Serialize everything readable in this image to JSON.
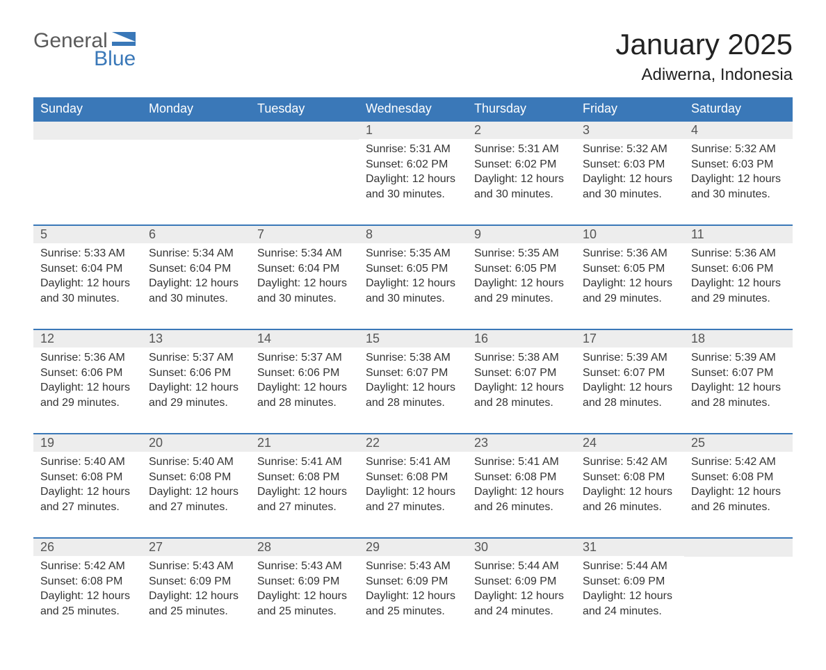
{
  "logo": {
    "general": "General",
    "blue": "Blue",
    "accent_color": "#3a78b8"
  },
  "title": "January 2025",
  "location": "Adiwerna, Indonesia",
  "colors": {
    "header_bg": "#3a78b8",
    "header_text": "#ffffff",
    "daynum_bg": "#ededed",
    "text": "#333333",
    "row_border": "#3a78b8",
    "page_bg": "#ffffff"
  },
  "weekdays": [
    "Sunday",
    "Monday",
    "Tuesday",
    "Wednesday",
    "Thursday",
    "Friday",
    "Saturday"
  ],
  "weeks": [
    [
      {
        "empty": true
      },
      {
        "empty": true
      },
      {
        "empty": true
      },
      {
        "day": "1",
        "sunrise": "Sunrise: 5:31 AM",
        "sunset": "Sunset: 6:02 PM",
        "daylight": "Daylight: 12 hours and 30 minutes."
      },
      {
        "day": "2",
        "sunrise": "Sunrise: 5:31 AM",
        "sunset": "Sunset: 6:02 PM",
        "daylight": "Daylight: 12 hours and 30 minutes."
      },
      {
        "day": "3",
        "sunrise": "Sunrise: 5:32 AM",
        "sunset": "Sunset: 6:03 PM",
        "daylight": "Daylight: 12 hours and 30 minutes."
      },
      {
        "day": "4",
        "sunrise": "Sunrise: 5:32 AM",
        "sunset": "Sunset: 6:03 PM",
        "daylight": "Daylight: 12 hours and 30 minutes."
      }
    ],
    [
      {
        "day": "5",
        "sunrise": "Sunrise: 5:33 AM",
        "sunset": "Sunset: 6:04 PM",
        "daylight": "Daylight: 12 hours and 30 minutes."
      },
      {
        "day": "6",
        "sunrise": "Sunrise: 5:34 AM",
        "sunset": "Sunset: 6:04 PM",
        "daylight": "Daylight: 12 hours and 30 minutes."
      },
      {
        "day": "7",
        "sunrise": "Sunrise: 5:34 AM",
        "sunset": "Sunset: 6:04 PM",
        "daylight": "Daylight: 12 hours and 30 minutes."
      },
      {
        "day": "8",
        "sunrise": "Sunrise: 5:35 AM",
        "sunset": "Sunset: 6:05 PM",
        "daylight": "Daylight: 12 hours and 30 minutes."
      },
      {
        "day": "9",
        "sunrise": "Sunrise: 5:35 AM",
        "sunset": "Sunset: 6:05 PM",
        "daylight": "Daylight: 12 hours and 29 minutes."
      },
      {
        "day": "10",
        "sunrise": "Sunrise: 5:36 AM",
        "sunset": "Sunset: 6:05 PM",
        "daylight": "Daylight: 12 hours and 29 minutes."
      },
      {
        "day": "11",
        "sunrise": "Sunrise: 5:36 AM",
        "sunset": "Sunset: 6:06 PM",
        "daylight": "Daylight: 12 hours and 29 minutes."
      }
    ],
    [
      {
        "day": "12",
        "sunrise": "Sunrise: 5:36 AM",
        "sunset": "Sunset: 6:06 PM",
        "daylight": "Daylight: 12 hours and 29 minutes."
      },
      {
        "day": "13",
        "sunrise": "Sunrise: 5:37 AM",
        "sunset": "Sunset: 6:06 PM",
        "daylight": "Daylight: 12 hours and 29 minutes."
      },
      {
        "day": "14",
        "sunrise": "Sunrise: 5:37 AM",
        "sunset": "Sunset: 6:06 PM",
        "daylight": "Daylight: 12 hours and 28 minutes."
      },
      {
        "day": "15",
        "sunrise": "Sunrise: 5:38 AM",
        "sunset": "Sunset: 6:07 PM",
        "daylight": "Daylight: 12 hours and 28 minutes."
      },
      {
        "day": "16",
        "sunrise": "Sunrise: 5:38 AM",
        "sunset": "Sunset: 6:07 PM",
        "daylight": "Daylight: 12 hours and 28 minutes."
      },
      {
        "day": "17",
        "sunrise": "Sunrise: 5:39 AM",
        "sunset": "Sunset: 6:07 PM",
        "daylight": "Daylight: 12 hours and 28 minutes."
      },
      {
        "day": "18",
        "sunrise": "Sunrise: 5:39 AM",
        "sunset": "Sunset: 6:07 PM",
        "daylight": "Daylight: 12 hours and 28 minutes."
      }
    ],
    [
      {
        "day": "19",
        "sunrise": "Sunrise: 5:40 AM",
        "sunset": "Sunset: 6:08 PM",
        "daylight": "Daylight: 12 hours and 27 minutes."
      },
      {
        "day": "20",
        "sunrise": "Sunrise: 5:40 AM",
        "sunset": "Sunset: 6:08 PM",
        "daylight": "Daylight: 12 hours and 27 minutes."
      },
      {
        "day": "21",
        "sunrise": "Sunrise: 5:41 AM",
        "sunset": "Sunset: 6:08 PM",
        "daylight": "Daylight: 12 hours and 27 minutes."
      },
      {
        "day": "22",
        "sunrise": "Sunrise: 5:41 AM",
        "sunset": "Sunset: 6:08 PM",
        "daylight": "Daylight: 12 hours and 27 minutes."
      },
      {
        "day": "23",
        "sunrise": "Sunrise: 5:41 AM",
        "sunset": "Sunset: 6:08 PM",
        "daylight": "Daylight: 12 hours and 26 minutes."
      },
      {
        "day": "24",
        "sunrise": "Sunrise: 5:42 AM",
        "sunset": "Sunset: 6:08 PM",
        "daylight": "Daylight: 12 hours and 26 minutes."
      },
      {
        "day": "25",
        "sunrise": "Sunrise: 5:42 AM",
        "sunset": "Sunset: 6:08 PM",
        "daylight": "Daylight: 12 hours and 26 minutes."
      }
    ],
    [
      {
        "day": "26",
        "sunrise": "Sunrise: 5:42 AM",
        "sunset": "Sunset: 6:08 PM",
        "daylight": "Daylight: 12 hours and 25 minutes."
      },
      {
        "day": "27",
        "sunrise": "Sunrise: 5:43 AM",
        "sunset": "Sunset: 6:09 PM",
        "daylight": "Daylight: 12 hours and 25 minutes."
      },
      {
        "day": "28",
        "sunrise": "Sunrise: 5:43 AM",
        "sunset": "Sunset: 6:09 PM",
        "daylight": "Daylight: 12 hours and 25 minutes."
      },
      {
        "day": "29",
        "sunrise": "Sunrise: 5:43 AM",
        "sunset": "Sunset: 6:09 PM",
        "daylight": "Daylight: 12 hours and 25 minutes."
      },
      {
        "day": "30",
        "sunrise": "Sunrise: 5:44 AM",
        "sunset": "Sunset: 6:09 PM",
        "daylight": "Daylight: 12 hours and 24 minutes."
      },
      {
        "day": "31",
        "sunrise": "Sunrise: 5:44 AM",
        "sunset": "Sunset: 6:09 PM",
        "daylight": "Daylight: 12 hours and 24 minutes."
      },
      {
        "empty": true
      }
    ]
  ]
}
